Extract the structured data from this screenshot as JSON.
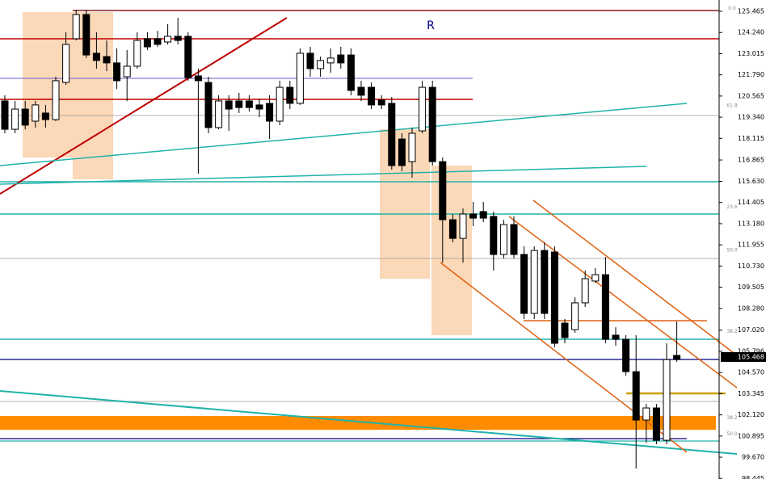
{
  "chart_data": {
    "type": "candlestick",
    "categories": [
      null,
      null,
      null,
      null,
      null,
      null,
      null,
      null,
      null,
      null,
      null,
      null,
      null,
      null,
      null,
      null,
      null,
      null,
      null,
      null,
      null,
      null,
      null,
      null,
      null,
      null,
      null,
      null,
      null,
      null,
      null,
      null,
      null,
      null,
      null,
      null,
      null,
      null,
      null,
      null,
      null,
      null,
      null,
      null,
      null,
      null,
      null,
      null,
      null,
      null,
      null,
      null,
      null,
      null,
      null,
      null,
      null,
      null,
      null,
      null,
      null,
      null,
      null,
      null,
      null,
      null,
      null
    ],
    "open": [
      120.28,
      118.64,
      119.81,
      119.11,
      119.58,
      119.2,
      121.35,
      123.88,
      125.28,
      123.04,
      122.85,
      122.48,
      121.68,
      122.29,
      123.88,
      123.88,
      123.69,
      124.02,
      124.02,
      121.73,
      121.35,
      118.74,
      120.28,
      120.28,
      120.28,
      120.05,
      120.14,
      119.11,
      121.07,
      120.14,
      123.04,
      122.15,
      122.48,
      122.94,
      122.94,
      121.07,
      121.07,
      120.33,
      120.14,
      118.08,
      116.77,
      118.55,
      121.07,
      116.77,
      113.41,
      112.33,
      113.74,
      113.88,
      113.6,
      111.4,
      113.13,
      111.4,
      107.99,
      111.63,
      111.54,
      107.43,
      107.05,
      108.6,
      109.86,
      110.23,
      106.73,
      106.49,
      104.62,
      101.82,
      102.52,
      100.65,
      105.56
    ],
    "high": [
      120.61,
      120.28,
      120.28,
      120.28,
      120.05,
      121.68,
      124.25,
      125.56,
      125.56,
      124.25,
      123.78,
      123.32,
      123.22,
      124.25,
      124.25,
      124.34,
      124.72,
      125.09,
      124.25,
      122.15,
      121.68,
      120.61,
      120.61,
      120.75,
      120.61,
      120.42,
      120.61,
      121.45,
      121.45,
      123.32,
      123.41,
      122.85,
      123.32,
      123.41,
      123.32,
      121.45,
      121.35,
      120.61,
      120.51,
      118.41,
      118.74,
      121.45,
      121.45,
      117.01,
      113.74,
      114.06,
      114.44,
      114.44,
      113.88,
      113.41,
      113.6,
      111.87,
      111.87,
      112.1,
      111.87,
      107.66,
      108.92,
      110.47,
      110.61,
      111.26,
      107.19,
      106.73,
      106.73,
      102.75,
      102.75,
      106.26,
      107.52
    ],
    "low": [
      118.41,
      118.41,
      118.64,
      118.74,
      118.74,
      119.11,
      121.21,
      123.78,
      122.76,
      122.15,
      122.01,
      120.98,
      120.28,
      122.15,
      123.22,
      123.41,
      123.55,
      123.55,
      121.45,
      116.07,
      118.41,
      118.64,
      118.55,
      119.58,
      119.67,
      119.34,
      118.08,
      118.88,
      119.81,
      120.05,
      121.68,
      121.68,
      121.91,
      122.15,
      120.61,
      120.28,
      119.81,
      119.81,
      116.31,
      116.21,
      115.84,
      118.41,
      116.54,
      110.93,
      112.1,
      110.93,
      113.04,
      113.27,
      110.47,
      111.17,
      111.17,
      107.66,
      107.66,
      107.66,
      106.03,
      106.26,
      106.87,
      108.36,
      109.76,
      106.26,
      106.12,
      104.39,
      99.02,
      100.51,
      100.42,
      100.42,
      105.18
    ],
    "close": [
      118.64,
      119.81,
      118.88,
      120.05,
      119.2,
      121.45,
      123.55,
      125.28,
      122.94,
      122.62,
      122.48,
      121.45,
      122.29,
      123.78,
      123.41,
      123.55,
      124.02,
      123.78,
      121.63,
      121.45,
      118.74,
      120.28,
      119.81,
      119.9,
      119.9,
      119.81,
      119.11,
      121.07,
      120.14,
      123.04,
      122.15,
      122.62,
      122.76,
      122.48,
      120.89,
      120.61,
      120.05,
      120.05,
      116.54,
      116.54,
      118.41,
      121.07,
      116.77,
      113.41,
      112.33,
      113.74,
      113.5,
      113.5,
      111.4,
      113.13,
      111.4,
      107.99,
      111.63,
      107.99,
      106.26,
      106.59,
      108.6,
      110.0,
      110.23,
      106.49,
      106.49,
      104.62,
      101.82,
      102.52,
      100.65,
      105.32,
      105.32
    ],
    "bull_color": "#ffffff",
    "bear_color": "#000000",
    "wick_color": "#000000",
    "ylim": [
      98.41,
      126.12
    ],
    "yticks": [
      125.465,
      {
        "value": 124.24,
        "label": "124.240"
      },
      123.015,
      {
        "value": 121.79,
        "label": "121.790"
      },
      120.565,
      {
        "value": 119.34,
        "label": "119.340"
      },
      118.115,
      116.865,
      {
        "value": 115.63,
        "label": "115.630"
      },
      114.405,
      {
        "value": 113.18,
        "label": "113.180"
      },
      111.955,
      {
        "value": 110.73,
        "label": "110.730"
      },
      109.505,
      {
        "value": 108.28,
        "label": "108.280"
      },
      {
        "value": 107.02,
        "label": "107.020"
      },
      105.796,
      {
        "value": 104.57,
        "label": "104.570"
      },
      103.345,
      {
        "value": 102.12,
        "label": "102.120"
      },
      100.895,
      {
        "value": 99.67,
        "label": "99.670"
      },
      98.445
    ],
    "current_price": 105.468,
    "fib_labels": [
      {
        "value": 125.4,
        "label": "0.0"
      },
      {
        "value": 119.76,
        "label": "61.8"
      },
      {
        "value": 113.9,
        "label": "23.6"
      },
      {
        "value": 111.4,
        "label": "50.0"
      },
      {
        "value": 106.7,
        "label": "38.2"
      },
      {
        "value": 101.7,
        "label": "38.2"
      },
      {
        "value": 100.77,
        "label": "50.0"
      }
    ],
    "annotation": "R"
  }
}
